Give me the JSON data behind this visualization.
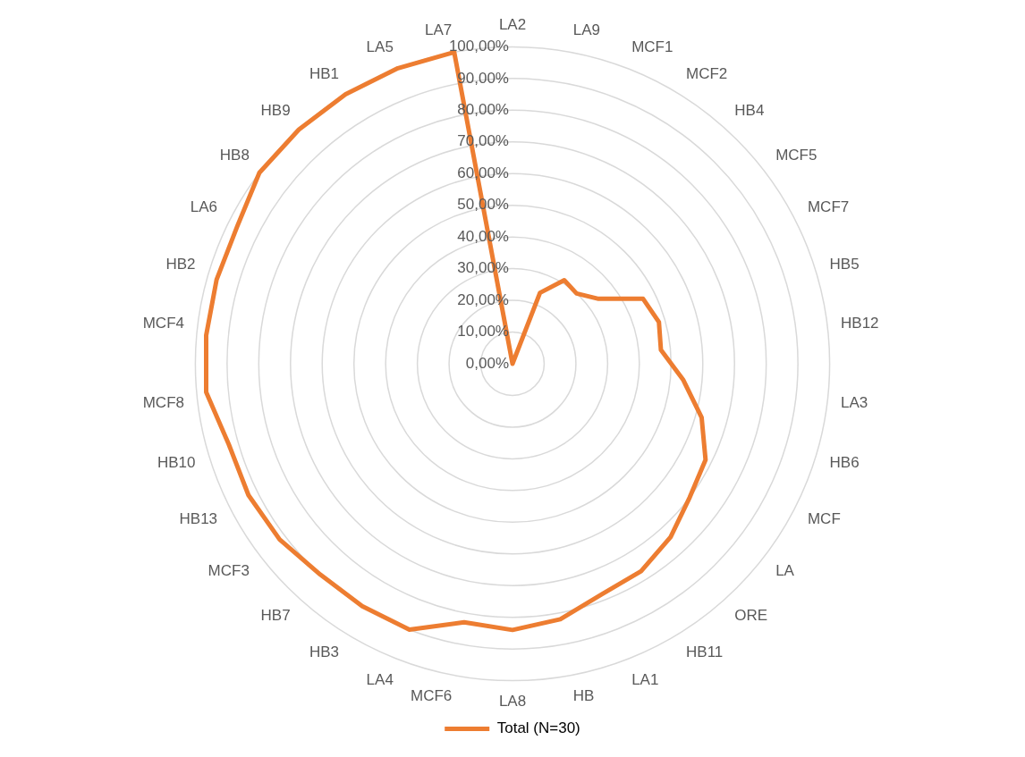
{
  "chart_data": {
    "type": "radar",
    "categories": [
      "LA2",
      "LA9",
      "MCF1",
      "MCF2",
      "HB4",
      "MCF5",
      "MCF7",
      "HB5",
      "HB12",
      "LA3",
      "HB6",
      "MCF",
      "LA",
      "ORE",
      "HB11",
      "LA1",
      "HB",
      "LA8",
      "MCF6",
      "LA4",
      "HB3",
      "HB7",
      "MCF3",
      "HB13",
      "HB10",
      "MCF8",
      "MCF4",
      "HB2",
      "LA6",
      "HB8",
      "HB9",
      "HB1",
      "LA5",
      "LA7"
    ],
    "series": [
      {
        "name": "Total (N=30)",
        "color": "#ed7d31",
        "values": [
          0,
          0,
          24,
          31,
          30,
          34,
          46,
          48,
          47,
          54,
          62,
          68,
          70,
          74,
          77,
          78,
          82,
          84,
          83,
          90,
          90,
          90,
          92,
          93,
          93,
          97,
          97,
          97,
          97,
          100,
          100,
          100,
          100,
          100
        ]
      }
    ],
    "ylim": [
      0,
      100
    ],
    "yticks": [
      {
        "value": 0,
        "label": "0,00%"
      },
      {
        "value": 10,
        "label": "10,00%"
      },
      {
        "value": 20,
        "label": "20,00%"
      },
      {
        "value": 30,
        "label": "30,00%"
      },
      {
        "value": 40,
        "label": "40,00%"
      },
      {
        "value": 50,
        "label": "50,00%"
      },
      {
        "value": 60,
        "label": "60,00%"
      },
      {
        "value": 70,
        "label": "70,00%"
      },
      {
        "value": 80,
        "label": "80,00%"
      },
      {
        "value": 90,
        "label": "90,00%"
      },
      {
        "value": 100,
        "label": "100,00%"
      }
    ],
    "grid": true,
    "legend": "bottom",
    "marker": "none",
    "line_style": "solid"
  }
}
